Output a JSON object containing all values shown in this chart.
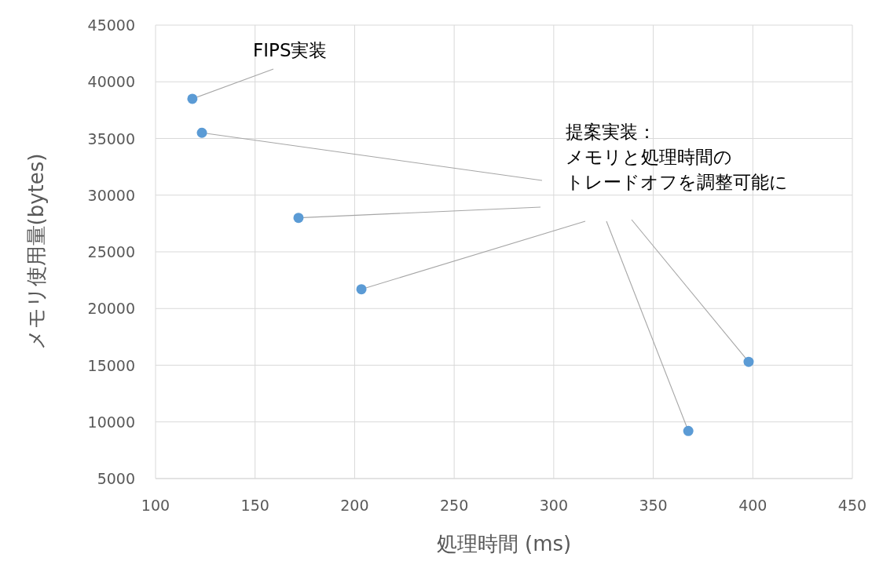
{
  "chart_data": {
    "type": "scatter",
    "xlabel": "処理時間 (ms)",
    "ylabel": "メモリ使用量(bytes)",
    "x": [
      118.5,
      123.3,
      171.8,
      203.4,
      367.6,
      397.9
    ],
    "values": [
      38500,
      35500,
      28000,
      21700,
      9200,
      15300
    ],
    "color": "#5b9bd5",
    "marker": "circle",
    "grid": true,
    "xlim": [
      100,
      450
    ],
    "xticks": [
      100,
      150,
      200,
      250,
      300,
      350,
      400,
      450
    ],
    "ylim": [
      5000,
      45000
    ],
    "yticks": [
      5000,
      10000,
      15000,
      20000,
      25000,
      30000,
      35000,
      40000,
      45000
    ],
    "annotations": [
      {
        "text": "FIPS実装",
        "x": 118.5,
        "y": 38500
      },
      "提案実装：メモリと処理時間のトレードオフを調整可能に"
    ]
  }
}
